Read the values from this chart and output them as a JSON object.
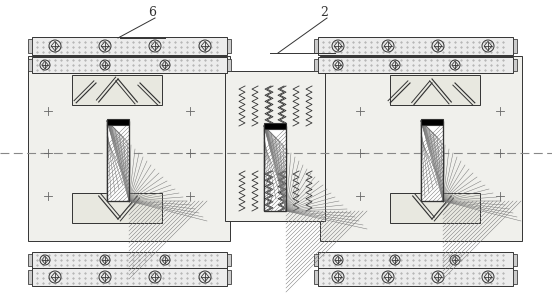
{
  "bg_color": "#f5f5f0",
  "line_color": "#333333",
  "fill_dots": "#e8e8e0",
  "hatch_color": "#555555",
  "dashed_line_color": "#888888",
  "label_6": "6",
  "label_2": "2",
  "figsize": [
    5.52,
    3.01
  ],
  "dpi": 100
}
